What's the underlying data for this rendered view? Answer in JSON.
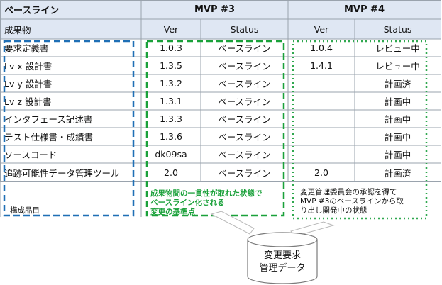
{
  "table": {
    "header1": {
      "baseline": "ベースライン",
      "mvp3": "MVP #3",
      "mvp4": "MVP #4"
    },
    "header2": {
      "deliverable": "成果物",
      "ver": "Ver",
      "status": "Status"
    },
    "rows": [
      {
        "name": "要求定義書",
        "v3": "1.0.3",
        "s3": "ベースライン",
        "v4": "1.0.4",
        "s4": "レビュー中"
      },
      {
        "name": "Lv x 設計書",
        "v3": "1.3.5",
        "s3": "ベースライン",
        "v4": "1.4.1",
        "s4": "レビュー中"
      },
      {
        "name": "Lv y 設計書",
        "v3": "1.3.2",
        "s3": "ベースライン",
        "v4": "",
        "s4": "計画済"
      },
      {
        "name": "Lv z 設計書",
        "v3": "1.3.1",
        "s3": "ベースライン",
        "v4": "",
        "s4": "計画中"
      },
      {
        "name": "インタフェース記述書",
        "v3": "1.3.3",
        "s3": "ベースライン",
        "v4": "",
        "s4": "計画中"
      },
      {
        "name": "テスト仕様書・成績書",
        "v3": "1.3.6",
        "s3": "ベースライン",
        "v4": "",
        "s4": "計画中"
      },
      {
        "name": "ソースコード",
        "v3": "dk09sa",
        "s3": "ベースライン",
        "v4": "",
        "s4": "計画中"
      },
      {
        "name": "追跡可能性データ管理ツール",
        "v3": "2.0",
        "s3": "ベースライン",
        "v4": "2.0",
        "s4": "計画済"
      }
    ]
  },
  "notes": {
    "config_items": "構成品目",
    "green_note": [
      "成果物間の一貫性が取れた状態で",
      "ベースライン化される",
      "変更の基準点"
    ],
    "mvp4_note": [
      "変更管理委員会の承認を得て",
      "MVP #3のベースラインから取",
      "り出し開発中の状態"
    ]
  },
  "database": {
    "lines": [
      "変更要求",
      "管理データ"
    ]
  },
  "colors": {
    "header_bg": "#dfe7f3",
    "blue_dash": "#1f6fb5",
    "green_dash": "#1aa13a",
    "green_dots": "#2fa84f",
    "grid": "#9aa3ad"
  }
}
